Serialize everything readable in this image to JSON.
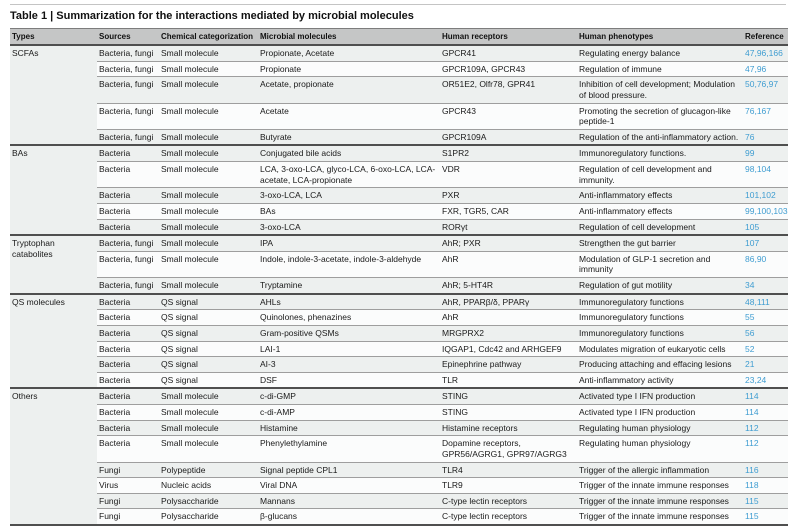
{
  "title": "Table 1 | Summarization for the interactions mediated by microbial molecules",
  "colors": {
    "header_bg": "#c5c6c6",
    "reference_link": "#3f9dd1",
    "section_rule": "#4f4f4f",
    "row_stripe": "#edf0ef"
  },
  "table": {
    "columns": [
      "Types",
      "Sources",
      "Chemical categorization",
      "Microbial molecules",
      "Human receptors",
      "Human phenotypes",
      "Reference"
    ],
    "sections": [
      {
        "type": "SCFAs",
        "rows": [
          {
            "source": "Bacteria, fungi",
            "chemical": "Small molecule",
            "molecule": "Propionate, Acetate",
            "receptor": "GPCR41",
            "phenotype": "Regulating energy balance",
            "reference": "47,96,166"
          },
          {
            "source": "Bacteria, fungi",
            "chemical": "Small molecule",
            "molecule": "Propionate",
            "receptor": "GPCR109A, GPCR43",
            "phenotype": "Regulation of immune",
            "reference": "47,96"
          },
          {
            "source": "Bacteria, fungi",
            "chemical": "Small molecule",
            "molecule": "Acetate, propionate",
            "receptor": "OR51E2, Olfr78, GPR41",
            "phenotype": "Inhibition of cell development; Modulation of blood pressure.",
            "reference": "50,76,97"
          },
          {
            "source": "Bacteria, fungi",
            "chemical": "Small molecule",
            "molecule": "Acetate",
            "receptor": "GPCR43",
            "phenotype": "Promoting the secretion of glucagon-like peptide-1",
            "reference": "76,167"
          },
          {
            "source": "Bacteria, fungi",
            "chemical": "Small molecule",
            "molecule": "Butyrate",
            "receptor": "GPCR109A",
            "phenotype": "Regulation of the anti-inflammatory action.",
            "reference": "76"
          }
        ]
      },
      {
        "type": "BAs",
        "rows": [
          {
            "source": "Bacteria",
            "chemical": "Small molecule",
            "molecule": "Conjugated bile acids",
            "receptor": "S1PR2",
            "phenotype": "Immunoregulatory functions.",
            "reference": "99"
          },
          {
            "source": "Bacteria",
            "chemical": "Small molecule",
            "molecule": "LCA, 3-oxo-LCA, glyco-LCA, 6-oxo-LCA, LCA-acetate, LCA-propionate",
            "receptor": "VDR",
            "phenotype": "Regulation of cell development and immunity.",
            "reference": "98,104"
          },
          {
            "source": "Bacteria",
            "chemical": "Small molecule",
            "molecule": "3-oxo-LCA, LCA",
            "receptor": "PXR",
            "phenotype": "Anti-inflammatory effects",
            "reference": "101,102"
          },
          {
            "source": "Bacteria",
            "chemical": "Small molecule",
            "molecule": "BAs",
            "receptor": "FXR, TGR5, CAR",
            "phenotype": "Anti-inflammatory effects",
            "reference": "99,100,103"
          },
          {
            "source": "Bacteria",
            "chemical": "Small molecule",
            "molecule": "3-oxo-LCA",
            "receptor": "RORγt",
            "phenotype": "Regulation of cell development",
            "reference": "105"
          }
        ]
      },
      {
        "type": "Tryptophan catabolites",
        "rows": [
          {
            "source": "Bacteria, fungi",
            "chemical": "Small molecule",
            "molecule": "IPA",
            "receptor": "AhR; PXR",
            "phenotype": "Strengthen the gut barrier",
            "reference": "107"
          },
          {
            "source": "Bacteria, fungi",
            "chemical": "Small molecule",
            "molecule": "Indole, indole-3-acetate, indole-3-aldehyde",
            "receptor": "AhR",
            "phenotype": "Modulation of GLP-1 secretion and immunity",
            "reference": "86,90"
          },
          {
            "source": "Bacteria, fungi",
            "chemical": "Small molecule",
            "molecule": "Tryptamine",
            "receptor": "AhR; 5-HT4R",
            "phenotype": "Regulation of gut motility",
            "reference": "34"
          }
        ]
      },
      {
        "type": "QS molecules",
        "rows": [
          {
            "source": "Bacteria",
            "chemical": "QS signal",
            "molecule": "AHLs",
            "receptor": "AhR, PPARβ/δ, PPARγ",
            "phenotype": "Immunoregulatory functions",
            "reference": "48,111"
          },
          {
            "source": "Bacteria",
            "chemical": "QS signal",
            "molecule": "Quinolones, phenazines",
            "receptor": "AhR",
            "phenotype": "Immunoregulatory functions",
            "reference": "55"
          },
          {
            "source": "Bacteria",
            "chemical": "QS signal",
            "molecule": "Gram-positive QSMs",
            "receptor": "MRGPRX2",
            "phenotype": "Immunoregulatory functions",
            "reference": "56"
          },
          {
            "source": "Bacteria",
            "chemical": "QS signal",
            "molecule": "LAI-1",
            "receptor": "IQGAP1, Cdc42 and ARHGEF9",
            "phenotype": "Modulates migration of eukaryotic cells",
            "reference": "52"
          },
          {
            "source": "Bacteria",
            "chemical": "QS signal",
            "molecule": "AI-3",
            "receptor": "Epinephrine pathway",
            "phenotype": "Producing attaching and effacing lesions",
            "reference": "21"
          },
          {
            "source": "Bacteria",
            "chemical": "QS signal",
            "molecule": "DSF",
            "receptor": "TLR",
            "phenotype": "Anti-inflammatory activity",
            "reference": "23,24"
          }
        ]
      },
      {
        "type": "Others",
        "rows": [
          {
            "source": "Bacteria",
            "chemical": "Small molecule",
            "molecule": "c-di-GMP",
            "receptor": "STING",
            "phenotype": "Activated type I IFN production",
            "reference": "114"
          },
          {
            "source": "Bacteria",
            "chemical": "Small molecule",
            "molecule": "c-di-AMP",
            "receptor": "STING",
            "phenotype": "Activated type I IFN production",
            "reference": "114"
          },
          {
            "source": "Bacteria",
            "chemical": "Small molecule",
            "molecule": "Histamine",
            "receptor": "Histamine receptors",
            "phenotype": "Regulating human physiology",
            "reference": "112"
          },
          {
            "source": "Bacteria",
            "chemical": "Small molecule",
            "molecule": "Phenylethylamine",
            "receptor": "Dopamine receptors, GPR56/AGRG1, GPR97/AGRG3",
            "phenotype": "Regulating human physiology",
            "reference": "112"
          },
          {
            "source": "Fungi",
            "chemical": "Polypeptide",
            "molecule": "Signal peptide CPL1",
            "receptor": "TLR4",
            "phenotype": "Trigger of the allergic inflammation",
            "reference": "116"
          },
          {
            "source": "Virus",
            "chemical": "Nucleic acids",
            "molecule": "Viral DNA",
            "receptor": "TLR9",
            "phenotype": "Trigger of the innate immune responses",
            "reference": "118"
          },
          {
            "source": "Fungi",
            "chemical": "Polysaccharide",
            "molecule": "Mannans",
            "receptor": "C-type lectin receptors",
            "phenotype": "Trigger of the innate immune responses",
            "reference": "115"
          },
          {
            "source": "Fungi",
            "chemical": "Polysaccharide",
            "molecule": "β-glucans",
            "receptor": "C-type lectin receptors",
            "phenotype": "Trigger of the innate immune responses",
            "reference": "115"
          }
        ]
      }
    ]
  }
}
